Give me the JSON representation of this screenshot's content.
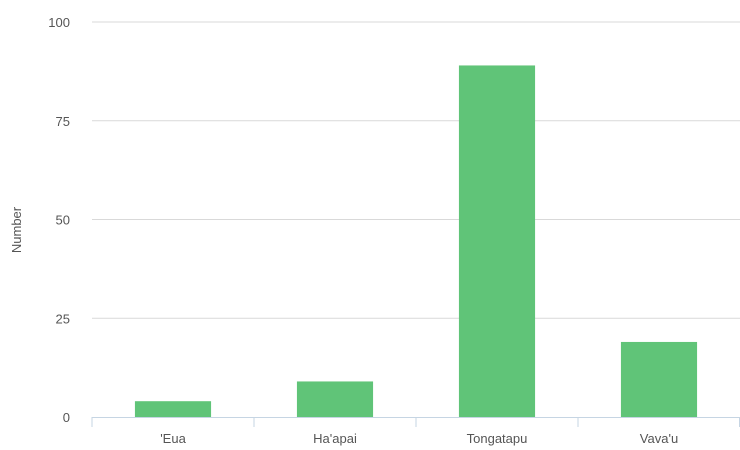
{
  "chart_data": {
    "type": "bar",
    "title": "",
    "xlabel": "",
    "ylabel": "Number",
    "categories": [
      "'Eua",
      "Ha'apai",
      "Tongatapu",
      "Vava'u"
    ],
    "values": [
      4,
      9,
      89,
      19
    ],
    "ylim": [
      0,
      100
    ],
    "yticks": [
      0,
      25,
      50,
      75,
      100
    ],
    "grid": true,
    "legend": "none",
    "colors": {
      "bar": "#60c478",
      "grid": "#d9d9d9",
      "axis": "#c6d5e3",
      "text": "#555555"
    }
  }
}
